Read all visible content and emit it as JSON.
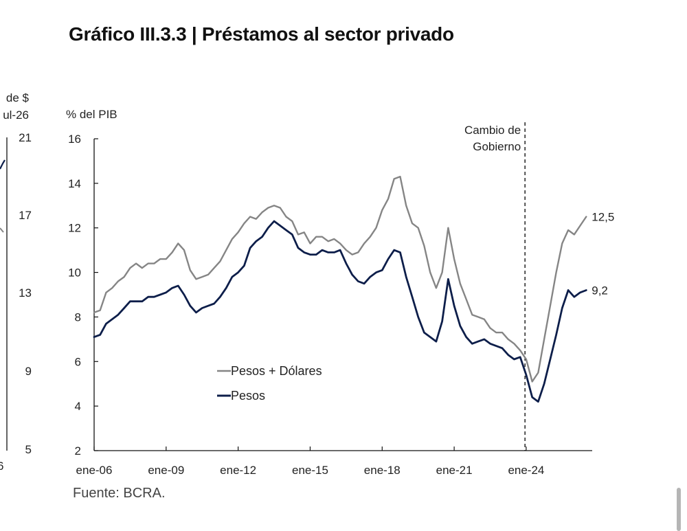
{
  "title": "Gráfico III.3.3 | Préstamos al sector privado",
  "source": "Fuente: BCRA.",
  "left_panel": {
    "unit_lines": [
      "de $",
      "ul-26"
    ],
    "yticks": [
      "21",
      "17",
      "13",
      "9",
      "5"
    ],
    "xtick_fragment": "6"
  },
  "chart_data": {
    "type": "line",
    "title": "Gráfico III.3.3 | Préstamos al sector privado",
    "ylabel": "% del PIB",
    "xlabel": "",
    "ylim": [
      2,
      16
    ],
    "yticks": [
      2,
      4,
      6,
      8,
      10,
      12,
      14,
      16
    ],
    "xlim": [
      2006.0,
      2026.75
    ],
    "xticks": [
      {
        "label": "ene-06",
        "value": 2006.0
      },
      {
        "label": "ene-09",
        "value": 2009.0
      },
      {
        "label": "ene-12",
        "value": 2012.0
      },
      {
        "label": "ene-15",
        "value": 2015.0
      },
      {
        "label": "ene-18",
        "value": 2018.0
      },
      {
        "label": "ene-21",
        "value": 2021.0
      },
      {
        "label": "ene-24",
        "value": 2024.0
      }
    ],
    "legend": {
      "placement": "lower-left"
    },
    "grid": false,
    "annotations": [
      {
        "type": "vline",
        "x": 2023.95,
        "label_lines": [
          "Cambio de",
          "Gobierno"
        ]
      }
    ],
    "series": [
      {
        "name": "Pesos + Dólares",
        "color": "#858585",
        "end_label": "12,5",
        "points": [
          [
            2006.0,
            8.2
          ],
          [
            2006.25,
            8.3
          ],
          [
            2006.5,
            9.1
          ],
          [
            2006.75,
            9.3
          ],
          [
            2007.0,
            9.6
          ],
          [
            2007.25,
            9.8
          ],
          [
            2007.5,
            10.2
          ],
          [
            2007.75,
            10.4
          ],
          [
            2008.0,
            10.2
          ],
          [
            2008.25,
            10.4
          ],
          [
            2008.5,
            10.4
          ],
          [
            2008.75,
            10.6
          ],
          [
            2009.0,
            10.6
          ],
          [
            2009.25,
            10.9
          ],
          [
            2009.5,
            11.3
          ],
          [
            2009.75,
            11.0
          ],
          [
            2010.0,
            10.1
          ],
          [
            2010.25,
            9.7
          ],
          [
            2010.5,
            9.8
          ],
          [
            2010.75,
            9.9
          ],
          [
            2011.0,
            10.2
          ],
          [
            2011.25,
            10.5
          ],
          [
            2011.5,
            11.0
          ],
          [
            2011.75,
            11.5
          ],
          [
            2012.0,
            11.8
          ],
          [
            2012.25,
            12.2
          ],
          [
            2012.5,
            12.5
          ],
          [
            2012.75,
            12.4
          ],
          [
            2013.0,
            12.7
          ],
          [
            2013.25,
            12.9
          ],
          [
            2013.5,
            13.0
          ],
          [
            2013.75,
            12.9
          ],
          [
            2014.0,
            12.5
          ],
          [
            2014.25,
            12.3
          ],
          [
            2014.5,
            11.7
          ],
          [
            2014.75,
            11.8
          ],
          [
            2015.0,
            11.3
          ],
          [
            2015.25,
            11.6
          ],
          [
            2015.5,
            11.6
          ],
          [
            2015.75,
            11.4
          ],
          [
            2016.0,
            11.5
          ],
          [
            2016.25,
            11.3
          ],
          [
            2016.5,
            11.0
          ],
          [
            2016.75,
            10.8
          ],
          [
            2017.0,
            10.9
          ],
          [
            2017.25,
            11.3
          ],
          [
            2017.5,
            11.6
          ],
          [
            2017.75,
            12.0
          ],
          [
            2018.0,
            12.8
          ],
          [
            2018.25,
            13.3
          ],
          [
            2018.5,
            14.2
          ],
          [
            2018.75,
            14.3
          ],
          [
            2019.0,
            13.0
          ],
          [
            2019.25,
            12.2
          ],
          [
            2019.5,
            12.0
          ],
          [
            2019.75,
            11.2
          ],
          [
            2020.0,
            10.0
          ],
          [
            2020.25,
            9.3
          ],
          [
            2020.5,
            10.0
          ],
          [
            2020.75,
            12.0
          ],
          [
            2021.0,
            10.6
          ],
          [
            2021.25,
            9.5
          ],
          [
            2021.5,
            8.8
          ],
          [
            2021.75,
            8.1
          ],
          [
            2022.0,
            8.0
          ],
          [
            2022.25,
            7.9
          ],
          [
            2022.5,
            7.5
          ],
          [
            2022.75,
            7.3
          ],
          [
            2023.0,
            7.3
          ],
          [
            2023.25,
            7.0
          ],
          [
            2023.5,
            6.8
          ],
          [
            2023.75,
            6.5
          ],
          [
            2024.0,
            6.1
          ],
          [
            2024.25,
            5.1
          ],
          [
            2024.5,
            5.5
          ],
          [
            2024.75,
            7.0
          ],
          [
            2025.0,
            8.5
          ],
          [
            2025.25,
            10.0
          ],
          [
            2025.5,
            11.3
          ],
          [
            2025.75,
            11.9
          ],
          [
            2026.0,
            11.7
          ],
          [
            2026.25,
            12.1
          ],
          [
            2026.5,
            12.5
          ]
        ]
      },
      {
        "name": "Pesos",
        "color": "#0d1e4a",
        "end_label": "9,2",
        "points": [
          [
            2006.0,
            7.1
          ],
          [
            2006.25,
            7.2
          ],
          [
            2006.5,
            7.7
          ],
          [
            2006.75,
            7.9
          ],
          [
            2007.0,
            8.1
          ],
          [
            2007.25,
            8.4
          ],
          [
            2007.5,
            8.7
          ],
          [
            2007.75,
            8.7
          ],
          [
            2008.0,
            8.7
          ],
          [
            2008.25,
            8.9
          ],
          [
            2008.5,
            8.9
          ],
          [
            2008.75,
            9.0
          ],
          [
            2009.0,
            9.1
          ],
          [
            2009.25,
            9.3
          ],
          [
            2009.5,
            9.4
          ],
          [
            2009.75,
            9.0
          ],
          [
            2010.0,
            8.5
          ],
          [
            2010.25,
            8.2
          ],
          [
            2010.5,
            8.4
          ],
          [
            2010.75,
            8.5
          ],
          [
            2011.0,
            8.6
          ],
          [
            2011.25,
            8.9
          ],
          [
            2011.5,
            9.3
          ],
          [
            2011.75,
            9.8
          ],
          [
            2012.0,
            10.0
          ],
          [
            2012.25,
            10.3
          ],
          [
            2012.5,
            11.1
          ],
          [
            2012.75,
            11.4
          ],
          [
            2013.0,
            11.6
          ],
          [
            2013.25,
            12.0
          ],
          [
            2013.5,
            12.3
          ],
          [
            2013.75,
            12.1
          ],
          [
            2014.0,
            11.9
          ],
          [
            2014.25,
            11.7
          ],
          [
            2014.5,
            11.1
          ],
          [
            2014.75,
            10.9
          ],
          [
            2015.0,
            10.8
          ],
          [
            2015.25,
            10.8
          ],
          [
            2015.5,
            11.0
          ],
          [
            2015.75,
            10.9
          ],
          [
            2016.0,
            10.9
          ],
          [
            2016.25,
            11.0
          ],
          [
            2016.5,
            10.4
          ],
          [
            2016.75,
            9.9
          ],
          [
            2017.0,
            9.6
          ],
          [
            2017.25,
            9.5
          ],
          [
            2017.5,
            9.8
          ],
          [
            2017.75,
            10.0
          ],
          [
            2018.0,
            10.1
          ],
          [
            2018.25,
            10.6
          ],
          [
            2018.5,
            11.0
          ],
          [
            2018.75,
            10.9
          ],
          [
            2019.0,
            9.8
          ],
          [
            2019.25,
            8.9
          ],
          [
            2019.5,
            8.0
          ],
          [
            2019.75,
            7.3
          ],
          [
            2020.0,
            7.1
          ],
          [
            2020.25,
            6.9
          ],
          [
            2020.5,
            7.8
          ],
          [
            2020.75,
            9.7
          ],
          [
            2021.0,
            8.5
          ],
          [
            2021.25,
            7.6
          ],
          [
            2021.5,
            7.1
          ],
          [
            2021.75,
            6.8
          ],
          [
            2022.0,
            6.9
          ],
          [
            2022.25,
            7.0
          ],
          [
            2022.5,
            6.8
          ],
          [
            2022.75,
            6.7
          ],
          [
            2023.0,
            6.6
          ],
          [
            2023.25,
            6.3
          ],
          [
            2023.5,
            6.1
          ],
          [
            2023.75,
            6.2
          ],
          [
            2024.0,
            5.4
          ],
          [
            2024.25,
            4.4
          ],
          [
            2024.5,
            4.2
          ],
          [
            2024.75,
            5.0
          ],
          [
            2025.0,
            6.1
          ],
          [
            2025.25,
            7.2
          ],
          [
            2025.5,
            8.4
          ],
          [
            2025.75,
            9.2
          ],
          [
            2026.0,
            8.9
          ],
          [
            2026.25,
            9.1
          ],
          [
            2026.5,
            9.2
          ]
        ]
      }
    ]
  }
}
